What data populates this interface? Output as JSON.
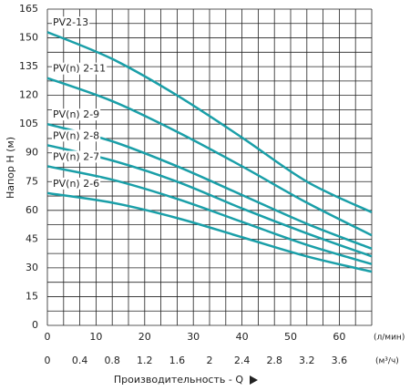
{
  "chart_data": {
    "type": "line",
    "y_label": "Напор H (м)",
    "x_label": "Производительность - Q",
    "x_unit": "(м³/ч)",
    "x2_unit": "(л/мин)",
    "x": [
      0,
      0.8,
      1.6,
      2.4,
      3.2,
      4.0
    ],
    "series": [
      {
        "name": "PV2-13",
        "color": "#1a9fa8",
        "values": [
          153,
          139,
          120,
          98,
          75,
          59
        ]
      },
      {
        "name": "PV(n) 2-11",
        "color": "#1a9fa8",
        "values": [
          129,
          117,
          101,
          83,
          64,
          47
        ]
      },
      {
        "name": "PV(n) 2-9",
        "color": "#1a9fa8",
        "values": [
          105,
          96,
          83,
          68,
          53,
          40
        ]
      },
      {
        "name": "PV(n) 2-8",
        "color": "#1a9fa8",
        "values": [
          94,
          86,
          75,
          61,
          48,
          36
        ]
      },
      {
        "name": "PV(n) 2-7",
        "color": "#1a9fa8",
        "values": [
          83,
          76,
          66,
          54,
          42,
          32
        ]
      },
      {
        "name": "PV(n) 2-6",
        "color": "#1a9fa8",
        "values": [
          69,
          64,
          56,
          46,
          36,
          28
        ]
      }
    ],
    "xlim": [
      0,
      4
    ],
    "xticks": [
      0,
      0.4,
      0.8,
      1.2,
      1.6,
      2,
      2.4,
      2.8,
      3.2,
      3.6
    ],
    "x2lim": [
      0,
      66.67
    ],
    "x2ticks": [
      0,
      10,
      20,
      30,
      40,
      50,
      60
    ],
    "ylim": [
      0,
      165
    ],
    "yticks": [
      0,
      15,
      30,
      45,
      60,
      75,
      90,
      105,
      120,
      135,
      150,
      165
    ],
    "xgrid": [
      0,
      0.2,
      0.4,
      0.6,
      0.8,
      1,
      1.2,
      1.4,
      1.6,
      1.8,
      2,
      2.2,
      2.4,
      2.6,
      2.8,
      3,
      3.2,
      3.4,
      3.6,
      3.8,
      4
    ],
    "ygrid": [
      0,
      7.5,
      15,
      22.5,
      30,
      37.5,
      45,
      52.5,
      60,
      67.5,
      75,
      82.5,
      90,
      97.5,
      105,
      112.5,
      120,
      127.5,
      135,
      142.5,
      150,
      157.5,
      165
    ]
  }
}
